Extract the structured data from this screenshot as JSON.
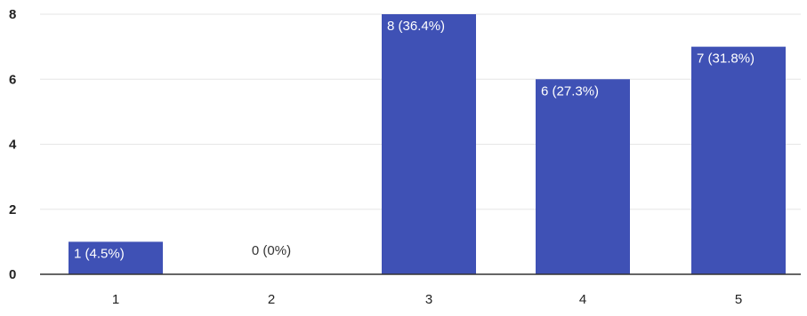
{
  "chart_data": {
    "type": "bar",
    "categories": [
      "1",
      "2",
      "3",
      "4",
      "5"
    ],
    "values": [
      1,
      0,
      8,
      6,
      7
    ],
    "data_labels": [
      "1 (4.5%)",
      "0 (0%)",
      "8 (36.4%)",
      "6 (27.3%)",
      "7 (31.8%)"
    ],
    "ylim": [
      0,
      8
    ],
    "yticks": [
      "0",
      "2",
      "4",
      "6",
      "8"
    ],
    "grid": true,
    "bar_color": "#3f51b5",
    "label_color_inside": "#ffffff",
    "label_color_outside": "#333333"
  }
}
